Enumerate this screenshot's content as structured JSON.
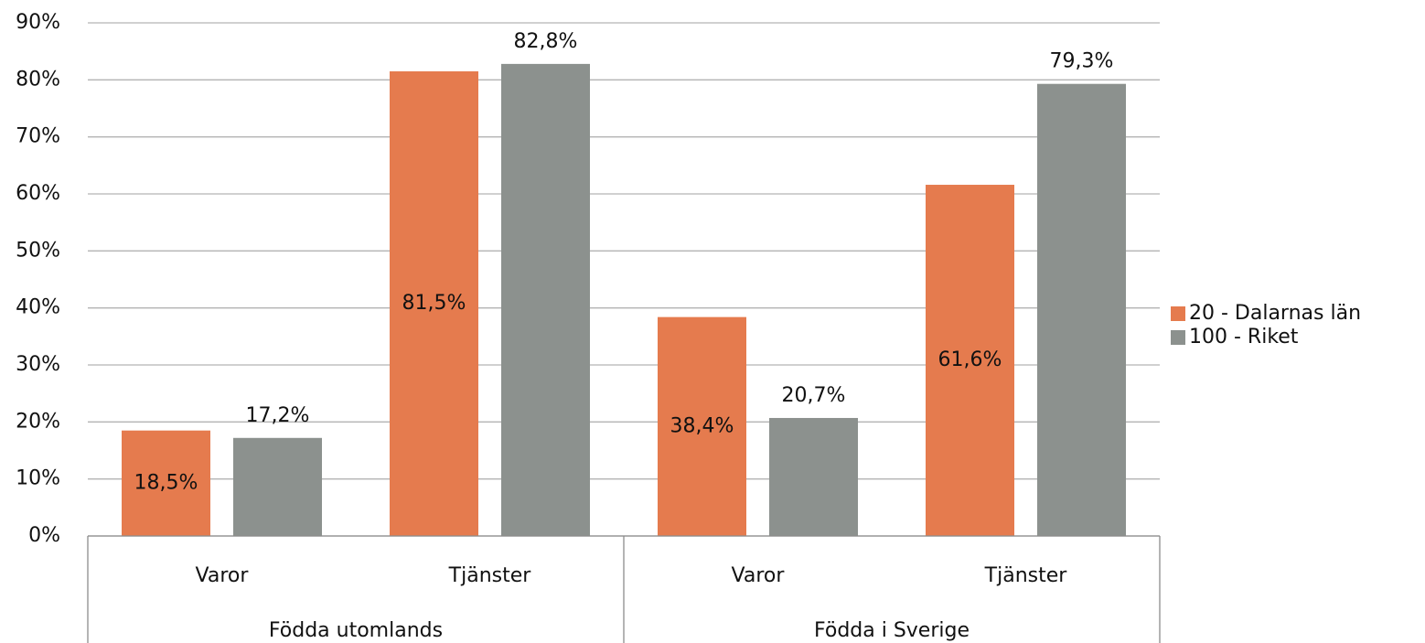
{
  "chart_data": {
    "type": "bar",
    "categories": [
      "Varor",
      "Tjänster",
      "Varor",
      "Tjänster"
    ],
    "groups": [
      "Födda utomlands",
      "Födda i Sverige"
    ],
    "series": [
      {
        "name": "20 - Dalarnas län",
        "color": "#e57b4e",
        "values": [
          18.5,
          81.5,
          38.4,
          61.6
        ],
        "value_labels": [
          "18,5%",
          "81,5%",
          "38,4%",
          "61,6%"
        ],
        "label_position": "center"
      },
      {
        "name": "100 - Riket",
        "color": "#8c918e",
        "values": [
          17.2,
          82.8,
          20.7,
          79.3
        ],
        "value_labels": [
          "17,2%",
          "82,8%",
          "20,7%",
          "79,3%"
        ],
        "label_position": "outside_end"
      }
    ],
    "ylim": [
      0,
      90
    ],
    "yticks": [
      {
        "value": 0,
        "label": "0%"
      },
      {
        "value": 10,
        "label": "10%"
      },
      {
        "value": 20,
        "label": "20%"
      },
      {
        "value": 30,
        "label": "30%"
      },
      {
        "value": 40,
        "label": "40%"
      },
      {
        "value": 50,
        "label": "50%"
      },
      {
        "value": 60,
        "label": "60%"
      },
      {
        "value": 70,
        "label": "70%"
      },
      {
        "value": 80,
        "label": "80%"
      },
      {
        "value": 90,
        "label": "90%"
      }
    ],
    "grid": true,
    "legend": "right"
  }
}
